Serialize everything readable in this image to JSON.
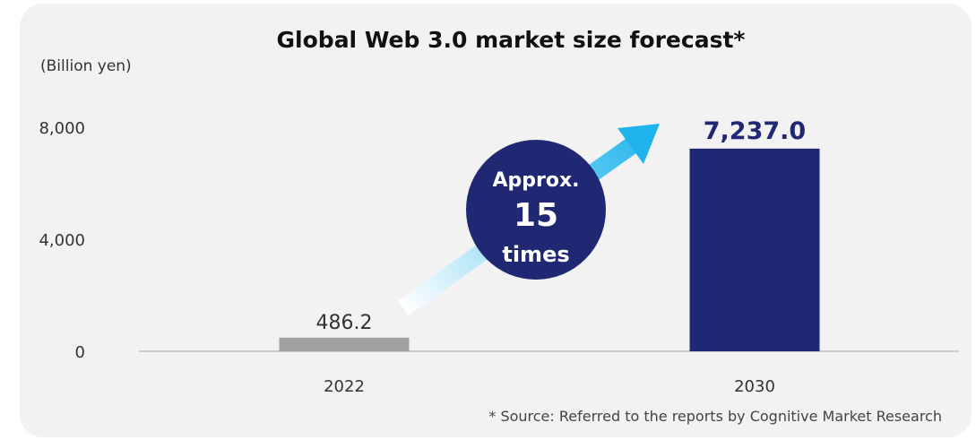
{
  "chart_data": {
    "type": "bar",
    "title": "Global Web 3.0 market size forecast*",
    "ylabel": "(Billion yen)",
    "categories": [
      "2022",
      "2030"
    ],
    "values": [
      486.2,
      7237.0
    ],
    "value_labels": [
      "486.2",
      "7,237.0"
    ],
    "bar_colors": [
      "#a0a0a0",
      "#202873"
    ],
    "ylim": [
      0,
      8000
    ],
    "yticks": [
      0,
      4000,
      8000
    ],
    "ytick_labels": [
      "0",
      "4,000",
      "8,000"
    ],
    "grid": false,
    "legend": "none",
    "annotation": {
      "line1": "Approx.",
      "line2": "15",
      "line3": "times",
      "circle_color": "#202873",
      "arrow_color": "#1fb4ec"
    },
    "source": "* Source: Referred to the reports by Cognitive Market Research"
  }
}
